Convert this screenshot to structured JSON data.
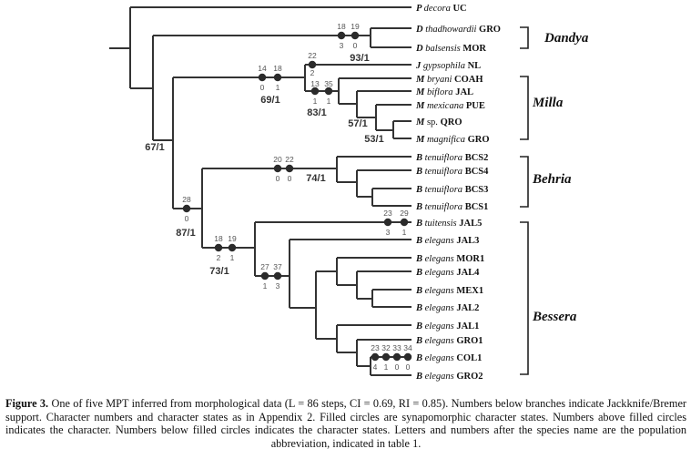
{
  "taxa": [
    {
      "genus": "P",
      "epithet": "decora",
      "pop": "UC"
    },
    {
      "genus": "D",
      "epithet": "thadhowardii",
      "pop": "GRO"
    },
    {
      "genus": "D",
      "epithet": "balsensis",
      "pop": "MOR"
    },
    {
      "genus": "J",
      "epithet": "gypsophila",
      "pop": "NL"
    },
    {
      "genus": "M",
      "epithet": "bryani",
      "pop": "COAH"
    },
    {
      "genus": "M",
      "epithet": "biflora",
      "pop": "JAL"
    },
    {
      "genus": "M",
      "epithet": "mexicana",
      "pop": "PUE"
    },
    {
      "genus": "M",
      "epithet": "sp.",
      "pop": "QRO",
      "epithet_plain": true
    },
    {
      "genus": "M",
      "epithet": "magnifica",
      "pop": "GRO"
    },
    {
      "genus": "B",
      "epithet": "tenuiflora",
      "pop": "BCS2"
    },
    {
      "genus": "B",
      "epithet": "tenuiflora",
      "pop": "BCS4"
    },
    {
      "genus": "B",
      "epithet": "tenuiflora",
      "pop": "BCS3"
    },
    {
      "genus": "B",
      "epithet": "tenuiflora",
      "pop": "BCS1"
    },
    {
      "genus": "B",
      "epithet": "tuitensis",
      "pop": "JAL5"
    },
    {
      "genus": "B",
      "epithet": "elegans",
      "pop": "JAL3"
    },
    {
      "genus": "B",
      "epithet": "elegans",
      "pop": "MOR1"
    },
    {
      "genus": "B",
      "epithet": "elegans",
      "pop": "JAL4"
    },
    {
      "genus": "B",
      "epithet": "elegans",
      "pop": "MEX1"
    },
    {
      "genus": "B",
      "epithet": "elegans",
      "pop": "JAL2"
    },
    {
      "genus": "B",
      "epithet": "elegans",
      "pop": "JAL1"
    },
    {
      "genus": "B",
      "epithet": "elegans",
      "pop": "GRO1"
    },
    {
      "genus": "B",
      "epithet": "elegans",
      "pop": "COL1"
    },
    {
      "genus": "B",
      "epithet": "elegans",
      "pop": "GRO2"
    }
  ],
  "supports": [
    "67/1",
    "93/1",
    "69/1",
    "83/1",
    "57/1",
    "53/1",
    "87/1",
    "74/1",
    "73/1"
  ],
  "characters": [
    {
      "char": "18",
      "state": "3"
    },
    {
      "char": "19",
      "state": "0"
    },
    {
      "char": "14",
      "state": "0"
    },
    {
      "char": "18",
      "state": "1"
    },
    {
      "char": "22",
      "state": "2"
    },
    {
      "char": "13",
      "state": "1"
    },
    {
      "char": "35",
      "state": "1"
    },
    {
      "char": "28",
      "state": "0"
    },
    {
      "char": "20",
      "state": "0"
    },
    {
      "char": "22",
      "state": "0"
    },
    {
      "char": "18",
      "state": "2"
    },
    {
      "char": "19",
      "state": "1"
    },
    {
      "char": "27",
      "state": "1"
    },
    {
      "char": "37",
      "state": "3"
    },
    {
      "char": "23",
      "state": "3"
    },
    {
      "char": "29",
      "state": "1"
    },
    {
      "char": "23",
      "state": "4"
    },
    {
      "char": "32",
      "state": "1"
    },
    {
      "char": "33",
      "state": "0"
    },
    {
      "char": "34",
      "state": "0"
    }
  ],
  "clades": [
    "Dandya",
    "Milla",
    "Behria",
    "Bessera"
  ],
  "caption": {
    "label": "Figure 3.",
    "text": " One of five MPT inferred from morphological data (L = 86 steps, CI = 0.69, RI = 0.85). Numbers below branches indicate Jackknife/Bremer support. Character numbers and character states as in Appendix 2. Filled circles are synapomorphic character states. Numbers above filled circles indicates the character. Numbers below filled circles indicates the character states. Letters and numbers after the species name are the population abbreviation, indicated in table 1."
  }
}
